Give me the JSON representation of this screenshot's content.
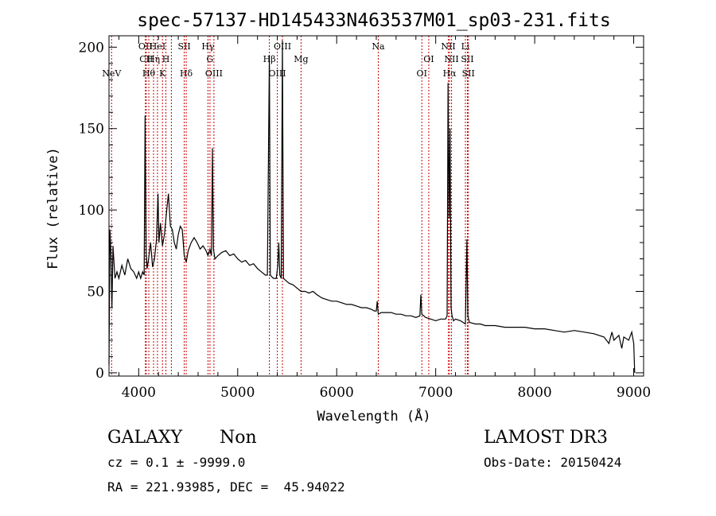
{
  "chart_data": {
    "type": "line",
    "title": "spec-57137-HD145433N463537M01_sp03-231.fits",
    "xlabel": "Wavelength (Å)",
    "ylabel": "Flux (relative)",
    "xlim": [
      3700,
      9100
    ],
    "ylim": [
      -2,
      207
    ],
    "x_ticks": [
      4000,
      5000,
      6000,
      7000,
      8000,
      9000
    ],
    "y_ticks": [
      0,
      50,
      100,
      150,
      200
    ],
    "grid": false,
    "series": [
      {
        "values": [
          [
            3700,
            5
          ],
          [
            3710,
            88
          ],
          [
            3720,
            72
          ],
          [
            3730,
            40
          ],
          [
            3740,
            78
          ],
          [
            3760,
            58
          ],
          [
            3780,
            62
          ],
          [
            3800,
            58
          ],
          [
            3830,
            66
          ],
          [
            3860,
            60
          ],
          [
            3890,
            70
          ],
          [
            3920,
            64
          ],
          [
            3950,
            62
          ],
          [
            3980,
            58
          ],
          [
            4000,
            62
          ],
          [
            4020,
            58
          ],
          [
            4040,
            62
          ],
          [
            4055,
            60
          ],
          [
            4065,
            158
          ],
          [
            4075,
            75
          ],
          [
            4085,
            64
          ],
          [
            4100,
            70
          ],
          [
            4120,
            80
          ],
          [
            4140,
            65
          ],
          [
            4160,
            70
          ],
          [
            4180,
            82
          ],
          [
            4195,
            110
          ],
          [
            4205,
            80
          ],
          [
            4220,
            92
          ],
          [
            4240,
            78
          ],
          [
            4260,
            85
          ],
          [
            4280,
            98
          ],
          [
            4300,
            110
          ],
          [
            4320,
            90
          ],
          [
            4340,
            88
          ],
          [
            4360,
            80
          ],
          [
            4380,
            76
          ],
          [
            4400,
            85
          ],
          [
            4420,
            90
          ],
          [
            4440,
            88
          ],
          [
            4460,
            72
          ],
          [
            4480,
            68
          ],
          [
            4500,
            75
          ],
          [
            4530,
            80
          ],
          [
            4560,
            83
          ],
          [
            4590,
            80
          ],
          [
            4620,
            76
          ],
          [
            4650,
            78
          ],
          [
            4680,
            75
          ],
          [
            4700,
            72
          ],
          [
            4720,
            76
          ],
          [
            4735,
            72
          ],
          [
            4745,
            138
          ],
          [
            4755,
            76
          ],
          [
            4770,
            70
          ],
          [
            4800,
            72
          ],
          [
            4840,
            74
          ],
          [
            4880,
            75
          ],
          [
            4920,
            72
          ],
          [
            4960,
            73
          ],
          [
            5000,
            70
          ],
          [
            5040,
            68
          ],
          [
            5080,
            69
          ],
          [
            5120,
            66
          ],
          [
            5160,
            67
          ],
          [
            5200,
            64
          ],
          [
            5240,
            62
          ],
          [
            5280,
            60
          ],
          [
            5300,
            60
          ],
          [
            5320,
            195
          ],
          [
            5330,
            60
          ],
          [
            5360,
            58
          ],
          [
            5390,
            58
          ],
          [
            5405,
            66
          ],
          [
            5415,
            80
          ],
          [
            5425,
            60
          ],
          [
            5440,
            58
          ],
          [
            5452,
            204
          ],
          [
            5462,
            58
          ],
          [
            5480,
            57
          ],
          [
            5520,
            55
          ],
          [
            5560,
            54
          ],
          [
            5600,
            52
          ],
          [
            5640,
            50
          ],
          [
            5680,
            50
          ],
          [
            5720,
            49
          ],
          [
            5760,
            50
          ],
          [
            5800,
            48
          ],
          [
            5850,
            46
          ],
          [
            5900,
            45
          ],
          [
            5950,
            44
          ],
          [
            6000,
            44
          ],
          [
            6050,
            43
          ],
          [
            6100,
            42
          ],
          [
            6150,
            42
          ],
          [
            6200,
            41
          ],
          [
            6250,
            40
          ],
          [
            6300,
            40
          ],
          [
            6350,
            39
          ],
          [
            6380,
            38
          ],
          [
            6400,
            38
          ],
          [
            6410,
            44
          ],
          [
            6420,
            36
          ],
          [
            6450,
            37
          ],
          [
            6500,
            37
          ],
          [
            6550,
            37
          ],
          [
            6600,
            36
          ],
          [
            6650,
            36
          ],
          [
            6700,
            35
          ],
          [
            6750,
            35
          ],
          [
            6800,
            34
          ],
          [
            6840,
            35
          ],
          [
            6850,
            48
          ],
          [
            6860,
            36
          ],
          [
            6900,
            34
          ],
          [
            6950,
            33
          ],
          [
            7000,
            32
          ],
          [
            7050,
            33
          ],
          [
            7100,
            33
          ],
          [
            7115,
            35
          ],
          [
            7125,
            178
          ],
          [
            7135,
            95
          ],
          [
            7145,
            150
          ],
          [
            7155,
            40
          ],
          [
            7165,
            35
          ],
          [
            7180,
            32
          ],
          [
            7200,
            33
          ],
          [
            7250,
            32
          ],
          [
            7300,
            30
          ],
          [
            7315,
            82
          ],
          [
            7325,
            35
          ],
          [
            7340,
            31
          ],
          [
            7400,
            30
          ],
          [
            7450,
            30
          ],
          [
            7500,
            29
          ],
          [
            7600,
            29
          ],
          [
            7700,
            28
          ],
          [
            7800,
            28
          ],
          [
            7900,
            28
          ],
          [
            8000,
            27
          ],
          [
            8100,
            27
          ],
          [
            8200,
            26
          ],
          [
            8300,
            25
          ],
          [
            8400,
            26
          ],
          [
            8500,
            25
          ],
          [
            8600,
            24
          ],
          [
            8700,
            22
          ],
          [
            8750,
            18
          ],
          [
            8780,
            25
          ],
          [
            8800,
            20
          ],
          [
            8850,
            23
          ],
          [
            8880,
            15
          ],
          [
            8900,
            22
          ],
          [
            8950,
            20
          ],
          [
            8980,
            25
          ],
          [
            9000,
            18
          ],
          [
            9010,
            0
          ]
        ]
      }
    ],
    "line_markers": [
      {
        "x": 3726,
        "label": "NeV",
        "row": 3
      },
      {
        "x": 4068,
        "label": "OII",
        "row": 1
      },
      {
        "x": 4076,
        "label": "CII",
        "row": 2
      },
      {
        "x": 4102,
        "label": "Hθ",
        "row": 3
      },
      {
        "x": 4150,
        "label": "Hη",
        "row": 2
      },
      {
        "x": 4190,
        "label": "HeI",
        "row": 1
      },
      {
        "x": 4240,
        "label": "K",
        "row": 3
      },
      {
        "x": 4275,
        "label": "H",
        "row": 2
      },
      {
        "x": 4330,
        "label": "",
        "row": 0
      },
      {
        "x": 4460,
        "label": "SII",
        "row": 1
      },
      {
        "x": 4480,
        "label": "Hδ",
        "row": 3
      },
      {
        "x": 4700,
        "label": "Hγ",
        "row": 1
      },
      {
        "x": 4720,
        "label": "G",
        "row": 2
      },
      {
        "x": 4760,
        "label": "OIII",
        "row": 3
      },
      {
        "x": 5320,
        "label": "Hβ",
        "row": 2
      },
      {
        "x": 5400,
        "label": "OIII",
        "row": 3
      },
      {
        "x": 5452,
        "label": "OIII",
        "row": 1
      },
      {
        "x": 5640,
        "label": "Mg",
        "row": 2
      },
      {
        "x": 6420,
        "label": "Na",
        "row": 1
      },
      {
        "x": 6860,
        "label": "OI",
        "row": 3
      },
      {
        "x": 6930,
        "label": "OI",
        "row": 2
      },
      {
        "x": 7128,
        "label": "NII",
        "row": 1
      },
      {
        "x": 7140,
        "label": "Hα",
        "row": 3
      },
      {
        "x": 7160,
        "label": "NII",
        "row": 2
      },
      {
        "x": 7300,
        "label": "Li",
        "row": 1
      },
      {
        "x": 7320,
        "label": "SII",
        "row": 2
      },
      {
        "x": 7330,
        "label": "SII",
        "row": 3
      }
    ]
  },
  "footer": {
    "classification": "GALAXY",
    "subclass": "Non",
    "survey": "LAMOST DR3",
    "cz": "cz = 0.1 ± -9999.0",
    "obs_date": "Obs-Date: 20150424",
    "coords": "RA = 221.93985, DEC =  45.94022"
  }
}
